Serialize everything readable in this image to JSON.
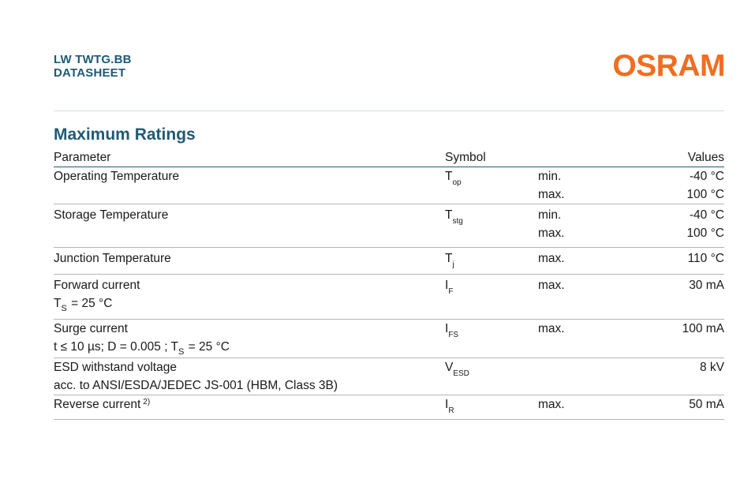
{
  "header": {
    "product": "LW TWTG.BB",
    "doc_type": "DATASHEET",
    "logo": "OSRAM",
    "logo_color": "#f26d21",
    "accent_color": "#1f5a74"
  },
  "section_title": "Maximum Ratings",
  "columns": {
    "parameter": "Parameter",
    "symbol": "Symbol",
    "values": "Values"
  },
  "rows": {
    "op_temp": {
      "parameter": "Operating Temperature",
      "symbol": "T",
      "symbol_sub": "op",
      "q1": "min.",
      "v1": "-40 °C",
      "q2": "max.",
      "v2": "100 °C"
    },
    "stg_temp": {
      "parameter": "Storage Temperature",
      "symbol": "T",
      "symbol_sub": "stg",
      "q1": "min.",
      "v1": "-40 °C",
      "q2": "max.",
      "v2": "100 °C"
    },
    "junction": {
      "parameter": "Junction Temperature",
      "symbol": "T",
      "symbol_sub": "j",
      "q1": "max.",
      "v1": "110 °C"
    },
    "forward": {
      "parameter": "Forward current",
      "cond_a": "T",
      "cond_sub": "S",
      "cond_b": " = 25 °C",
      "symbol": "I",
      "symbol_sub": "F",
      "q1": "max.",
      "v1": "30 mA"
    },
    "surge": {
      "parameter": "Surge current",
      "cond_a": "t ≤ 10 µs; D = 0.005 ; T",
      "cond_sub": "S",
      "cond_b": " = 25 °C",
      "symbol": "I",
      "symbol_sub": "FS",
      "q1": "max.",
      "v1": "100 mA"
    },
    "esd": {
      "parameter": "ESD withstand voltage",
      "cond": "acc. to ANSI/ESDA/JEDEC JS-001 (HBM, Class 3B)",
      "symbol": "V",
      "symbol_sub": "ESD",
      "v1": "8 kV"
    },
    "reverse": {
      "parameter": "Reverse current",
      "footnote": "2)",
      "symbol": "I",
      "symbol_sub": "R",
      "q1": "max.",
      "v1": "50 mA"
    }
  }
}
